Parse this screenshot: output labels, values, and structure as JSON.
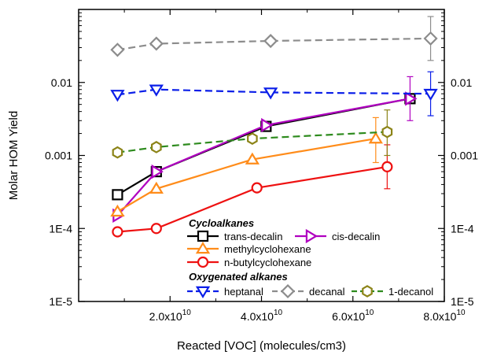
{
  "chart_data": {
    "type": "scatter",
    "xlabel": "Reacted [VOC] (molecules/cm3)",
    "ylabel": "Molar HOM Yield",
    "xlim": [
      0,
      80000000000
    ],
    "ylim": [
      1e-05,
      0.1
    ],
    "yscale": "log",
    "x_ticks": [
      {
        "value": 20000000000,
        "mantissa": "2.0x10",
        "exp": "10"
      },
      {
        "value": 40000000000,
        "mantissa": "4.0x10",
        "exp": "10"
      },
      {
        "value": 60000000000,
        "mantissa": "6.0x10",
        "exp": "10"
      },
      {
        "value": 80000000000,
        "mantissa": "8.0x10",
        "exp": "10"
      }
    ],
    "y_ticks": [
      {
        "value": 1e-05,
        "label": "1E-5"
      },
      {
        "value": 0.0001,
        "label": "1E-4"
      },
      {
        "value": 0.001,
        "label": "0.001"
      },
      {
        "value": 0.01,
        "label": "0.01"
      }
    ],
    "legend_groups": [
      {
        "heading": "Cycloalkanes",
        "series": [
          "trans-decalin",
          "cis-decalin",
          "methylcyclohexane",
          "n-butylcyclohexane"
        ]
      },
      {
        "heading": "Oxygenated alkanes",
        "series": [
          "heptanal",
          "decanal",
          "1-decanol"
        ]
      }
    ],
    "series": [
      {
        "name": "trans-decalin",
        "color": "#000000",
        "marker": "square",
        "line": "solid",
        "points": [
          {
            "x": 8500000000,
            "y": 0.00029
          },
          {
            "x": 17000000000,
            "y": 0.0006
          },
          {
            "x": 41000000000,
            "y": 0.0025
          },
          {
            "x": 72500000000,
            "y": 0.006
          }
        ]
      },
      {
        "name": "cis-decalin",
        "color": "#b000c0",
        "marker": "triangle-right",
        "line": "solid",
        "points": [
          {
            "x": 8500000000,
            "y": 0.00015
          },
          {
            "x": 17000000000,
            "y": 0.0006
          },
          {
            "x": 41000000000,
            "y": 0.0026
          },
          {
            "x": 72500000000,
            "y": 0.006,
            "err_lo": 0.003,
            "err_hi": 0.012
          }
        ]
      },
      {
        "name": "methylcyclohexane",
        "color": "#ff8c1a",
        "marker": "triangle-up",
        "line": "solid",
        "points": [
          {
            "x": 8500000000,
            "y": 0.00017
          },
          {
            "x": 17000000000,
            "y": 0.00035
          },
          {
            "x": 38000000000,
            "y": 0.00088
          },
          {
            "x": 65000000000,
            "y": 0.0017,
            "err_lo": 0.0008,
            "err_hi": 0.0033
          }
        ]
      },
      {
        "name": "n-butylcyclohexane",
        "color": "#ee1111",
        "marker": "circle",
        "line": "solid",
        "points": [
          {
            "x": 8500000000,
            "y": 9e-05
          },
          {
            "x": 17000000000,
            "y": 0.0001
          },
          {
            "x": 39000000000,
            "y": 0.00036
          },
          {
            "x": 67500000000,
            "y": 0.0007,
            "err_lo": 0.00035,
            "err_hi": 0.0014
          }
        ]
      },
      {
        "name": "heptanal",
        "color": "#0a1ee8",
        "marker": "triangle-down",
        "line": "dashed",
        "points": [
          {
            "x": 8500000000,
            "y": 0.0068
          },
          {
            "x": 17000000000,
            "y": 0.008
          },
          {
            "x": 42000000000,
            "y": 0.0073
          },
          {
            "x": 77000000000,
            "y": 0.007,
            "err_lo": 0.0035,
            "err_hi": 0.014
          }
        ]
      },
      {
        "name": "decanal",
        "color": "#8c8c8c",
        "marker": "diamond",
        "line": "dashed",
        "points": [
          {
            "x": 8500000000,
            "y": 0.028
          },
          {
            "x": 17000000000,
            "y": 0.034
          },
          {
            "x": 42000000000,
            "y": 0.037
          },
          {
            "x": 77000000000,
            "y": 0.04,
            "err_lo": 0.02,
            "err_hi": 0.08
          }
        ]
      },
      {
        "name": "1-decanol",
        "color": "#2e8b1e",
        "marker": "hexagon",
        "line": "dashed",
        "marker_color": "#8c8418",
        "points": [
          {
            "x": 8500000000,
            "y": 0.0011
          },
          {
            "x": 17000000000,
            "y": 0.0013
          },
          {
            "x": 38000000000,
            "y": 0.0017
          },
          {
            "x": 67500000000,
            "y": 0.0021,
            "err_lo": 0.001,
            "err_hi": 0.0042
          }
        ]
      }
    ]
  }
}
